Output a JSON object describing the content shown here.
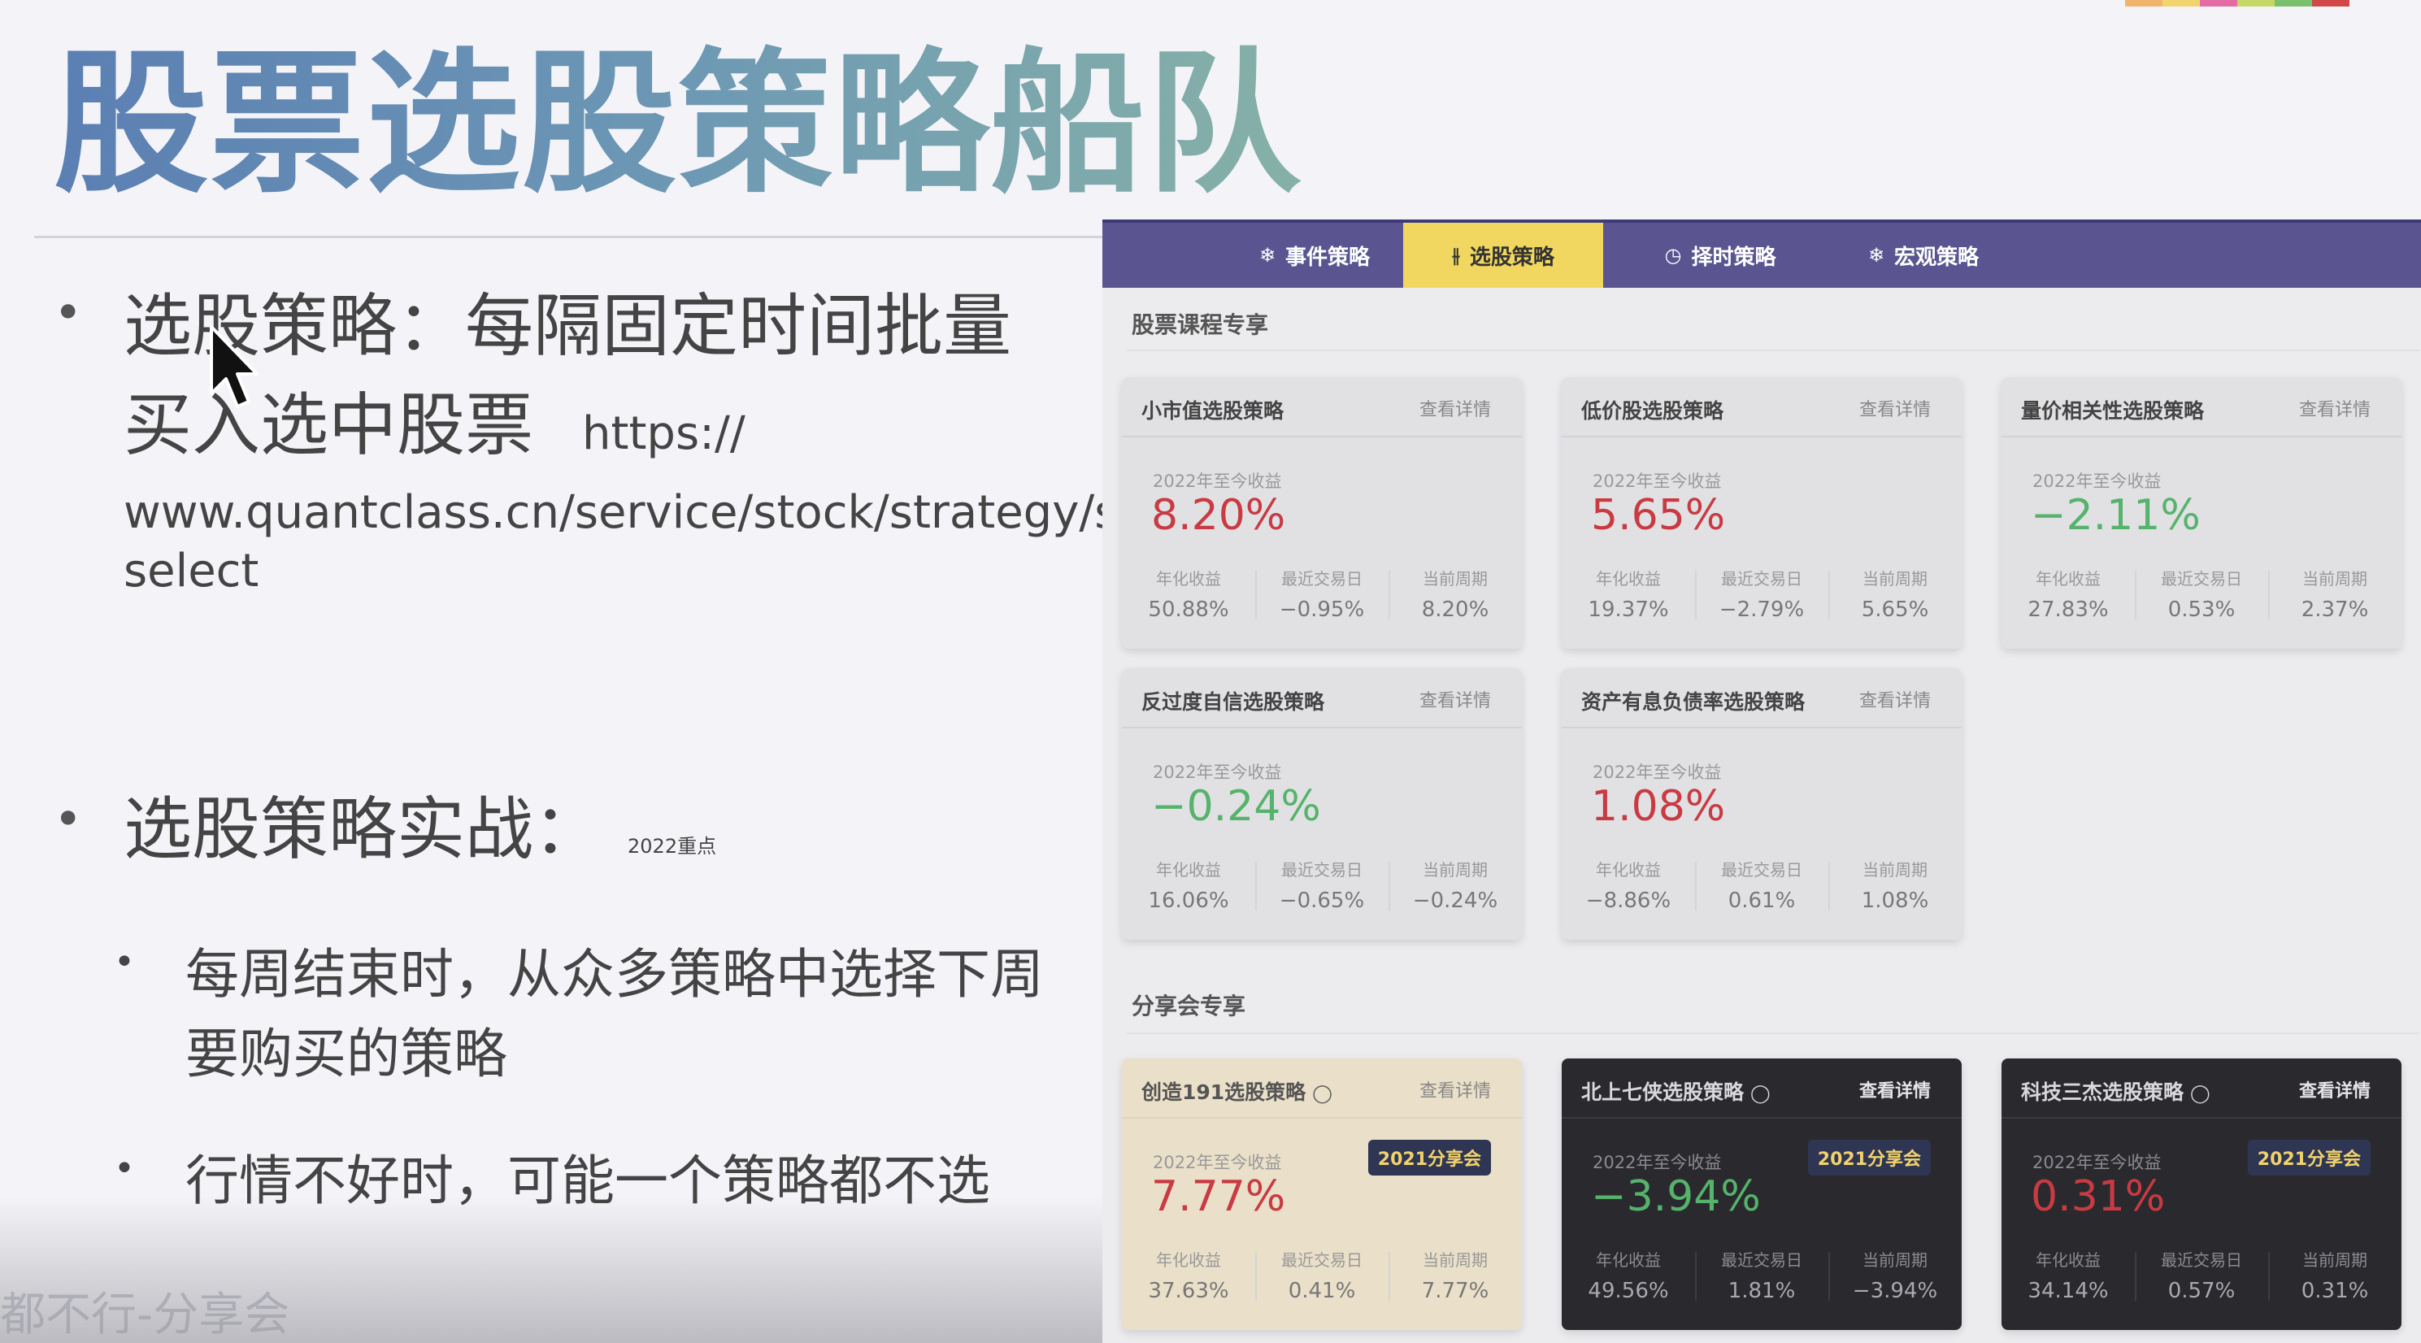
{
  "slide": {
    "title": "股票选股策略船队",
    "bullets": [
      {
        "text": "选股策略：每隔固定时间批量买入选中股票",
        "url_start": "https://",
        "url_rest": "www.quantclass.cn/service/stock/strategy/stock-select"
      },
      {
        "text": "选股策略实战：",
        "note": "2022重点"
      }
    ],
    "sub_bullets": [
      "每周结束时，从众多策略中选择下周要购买的策略",
      "行情不好时，可能一个策略都不选"
    ],
    "bottom_caption": "都不行-分享会",
    "strip_colors": [
      "#f0b46a",
      "#f3d36e",
      "#e46ba4",
      "#c7d766",
      "#7bc06c",
      "#d04848"
    ]
  },
  "nav": {
    "tabs": [
      {
        "icon": "❄",
        "label": "事件策略"
      },
      {
        "icon": "⫳",
        "label": "选股策略"
      },
      {
        "icon": "◷",
        "label": "择时策略"
      },
      {
        "icon": "❄",
        "label": "宏观策略"
      }
    ],
    "active_index": 1
  },
  "sections": {
    "course": "股票课程专享",
    "share": "分享会专享"
  },
  "cards_common": {
    "detail": "查看详情",
    "ret_label": "2022年至今收益",
    "stat_labels": [
      "年化收益",
      "最近交易日",
      "当前周期"
    ]
  },
  "course_cards": [
    {
      "title": "小市值选股策略",
      "ret": "8.20%",
      "trend": "up",
      "stats": [
        "50.88%",
        "−0.95%",
        "8.20%"
      ]
    },
    {
      "title": "低价股选股策略",
      "ret": "5.65%",
      "trend": "up",
      "stats": [
        "19.37%",
        "−2.79%",
        "5.65%"
      ]
    },
    {
      "title": "量价相关性选股策略",
      "ret": "−2.11%",
      "trend": "down",
      "stats": [
        "27.83%",
        "0.53%",
        "2.37%"
      ]
    },
    {
      "title": "反过度自信选股策略",
      "ret": "−0.24%",
      "trend": "down",
      "stats": [
        "16.06%",
        "−0.65%",
        "−0.24%"
      ]
    },
    {
      "title": "资产有息负债率选股策略",
      "ret": "1.08%",
      "trend": "up",
      "stats": [
        "−8.86%",
        "0.61%",
        "1.08%"
      ]
    }
  ],
  "share_cards": [
    {
      "title": "创造191选股策略",
      "badge": "2021分享会",
      "ret": "7.77%",
      "trend": "up",
      "theme": "gold",
      "stats": [
        "37.63%",
        "0.41%",
        "7.77%"
      ]
    },
    {
      "title": "北上七侠选股策略",
      "badge": "2021分享会",
      "ret": "−3.94%",
      "trend": "down",
      "theme": "dark",
      "stats": [
        "49.56%",
        "1.81%",
        "−3.94%"
      ]
    },
    {
      "title": "科技三杰选股策略",
      "badge": "2021分享会",
      "ret": "0.31%",
      "trend": "up",
      "theme": "dark",
      "stats": [
        "34.14%",
        "0.57%",
        "0.31%"
      ]
    }
  ]
}
